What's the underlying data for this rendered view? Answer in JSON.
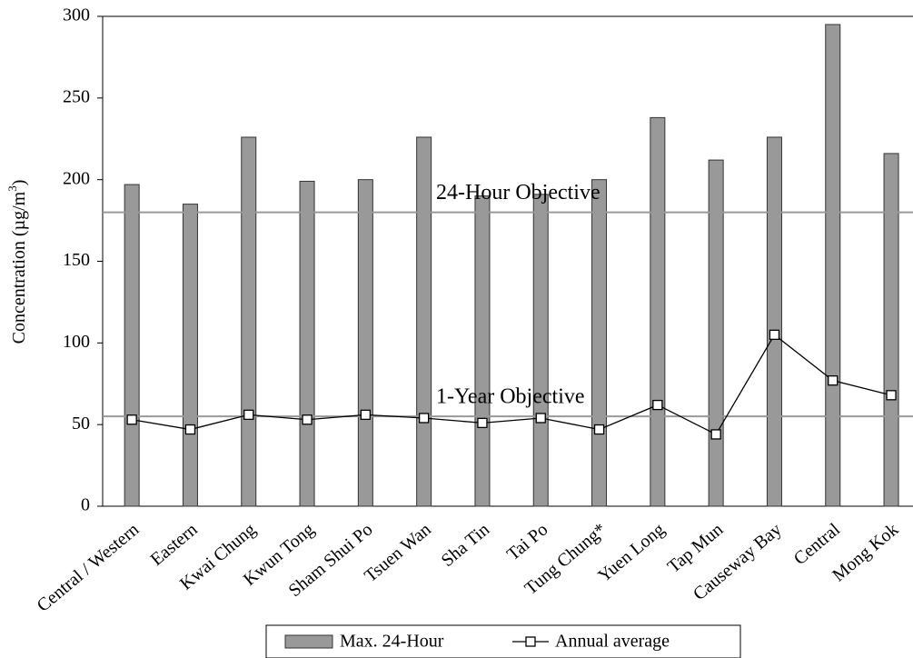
{
  "chart_data": {
    "type": "bar",
    "y_label": "Concentration (µg/m",
    "y_label_sup": "3",
    "y_label_end": ")",
    "categories": [
      "Central / Western",
      "Eastern",
      "Kwai Chung",
      "Kwun Tong",
      "Sham Shui Po",
      "Tsuen Wan",
      "Sha Tin",
      "Tai Po",
      "Tung Chung*",
      "Yuen Long",
      "Tap Mun",
      "Causeway Bay",
      "Central",
      "Mong Kok"
    ],
    "series": [
      {
        "name": "Max. 24-Hour",
        "type": "bar",
        "color": "#999999",
        "values": [
          197,
          185,
          226,
          199,
          200,
          226,
          190,
          191,
          200,
          238,
          212,
          226,
          295,
          216
        ]
      },
      {
        "name": "Annual average",
        "type": "line",
        "color": "#000000",
        "values": [
          53,
          47,
          56,
          53,
          56,
          54,
          51,
          54,
          47,
          62,
          44,
          105,
          77,
          68
        ]
      }
    ],
    "reference_lines": [
      {
        "label": "24-Hour Objective",
        "value": 180,
        "color": "#999999"
      },
      {
        "label": "1-Year Objective",
        "value": 55,
        "color": "#999999"
      }
    ],
    "ylim": [
      0,
      300
    ],
    "yticks": [
      0,
      50,
      100,
      150,
      200,
      250,
      300
    ],
    "legend": "bottom"
  }
}
